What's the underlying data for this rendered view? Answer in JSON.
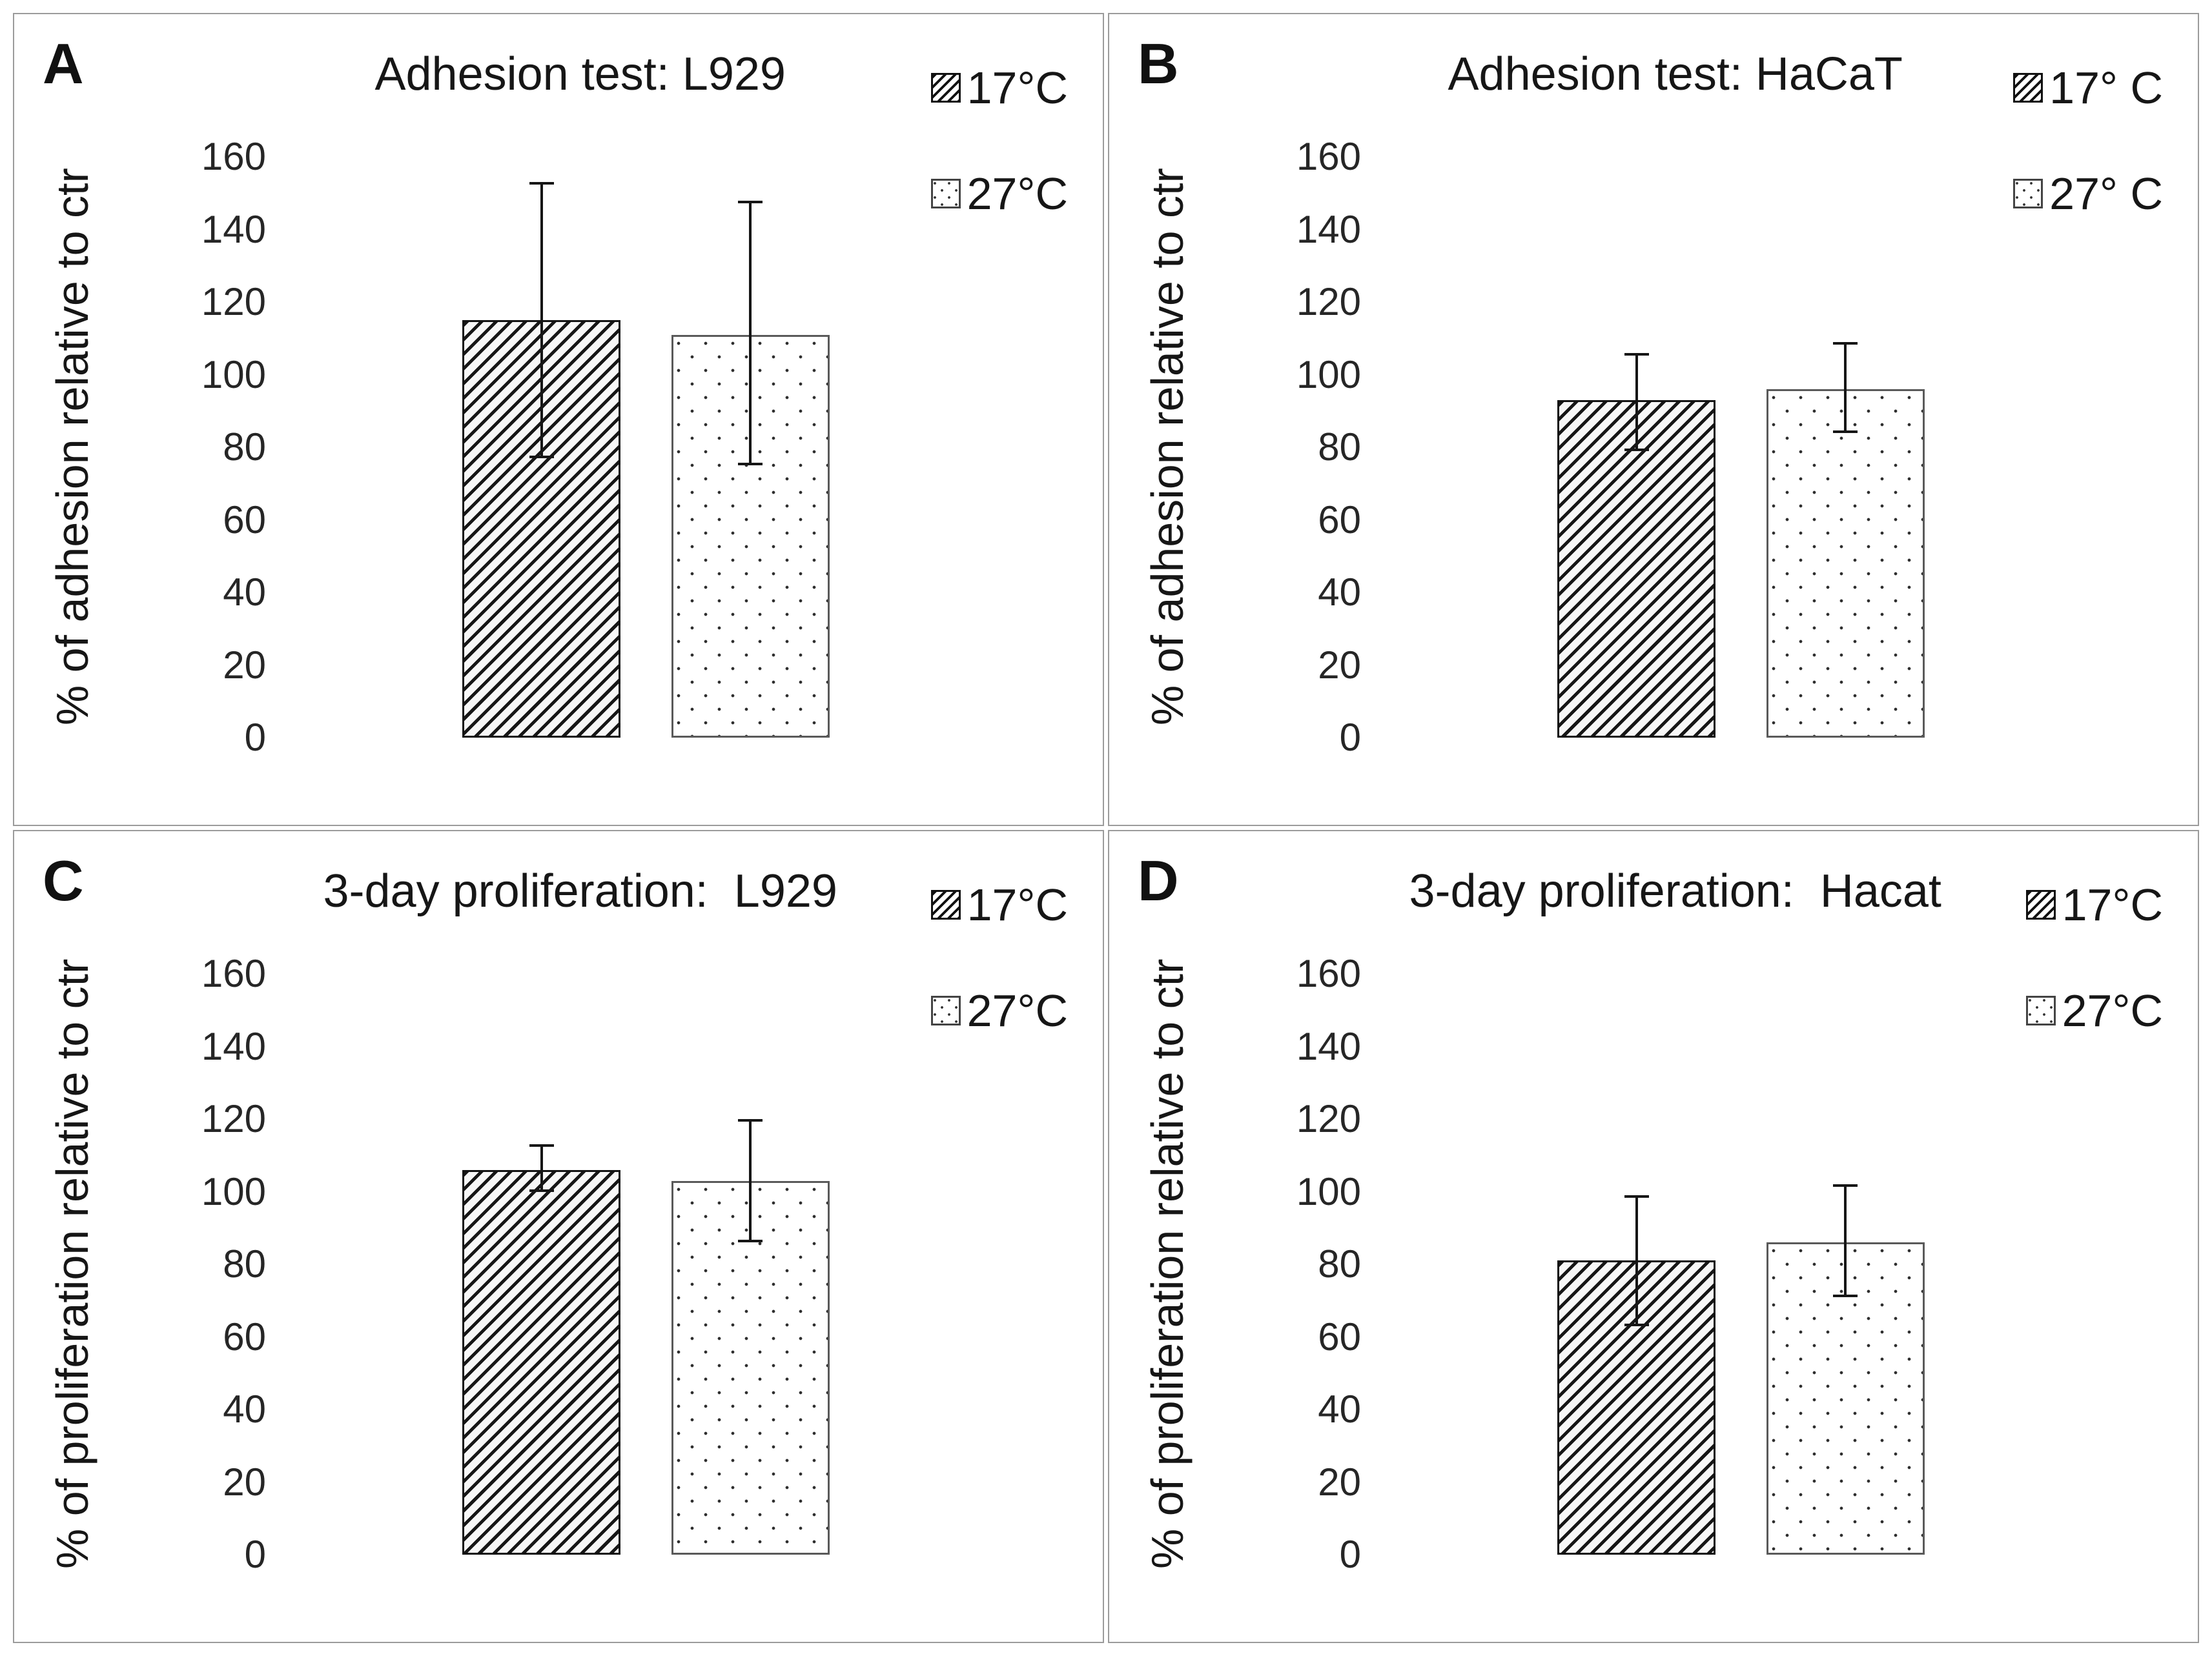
{
  "figure_background": "#ffffff",
  "panel_border_color": "#9b9b9b",
  "bar_colors": {
    "hatch_line": "#161616",
    "dot_color": "#2e2e2e",
    "bar_fill": "#ffffff"
  },
  "chart_data": [
    {
      "type": "bar",
      "panel_label": "A",
      "title": "Adhesion test: L929",
      "ylabel": "% of adhesion relative to ctr",
      "categories": [
        "17°C",
        "27°C"
      ],
      "values": [
        115,
        111
      ],
      "error_low": [
        77,
        75
      ],
      "error_high": [
        153,
        148
      ],
      "ylim": [
        0,
        160
      ],
      "yticks": [
        160,
        140,
        120,
        100,
        80,
        60,
        40,
        20,
        0
      ],
      "legend": [
        "17°C",
        "27°C"
      ],
      "legend_position": "top-right",
      "grid": false,
      "patterns": [
        "diagonal-hatch",
        "dots"
      ]
    },
    {
      "type": "bar",
      "panel_label": "B",
      "title": "Adhesion test: HaCaT",
      "ylabel": "% of adhesion relative to ctr",
      "categories": [
        "17° C",
        "27° C"
      ],
      "values": [
        93,
        96
      ],
      "error_low": [
        79,
        84
      ],
      "error_high": [
        106,
        109
      ],
      "ylim": [
        0,
        160
      ],
      "yticks": [
        160,
        140,
        120,
        100,
        80,
        60,
        40,
        20,
        0
      ],
      "legend": [
        "17° C",
        "27° C"
      ],
      "legend_position": "top-right",
      "grid": false,
      "patterns": [
        "diagonal-hatch",
        "dots"
      ]
    },
    {
      "type": "bar",
      "panel_label": "C",
      "title": "3-day proliferation:  L929",
      "ylabel": "% of proliferation relative to ctr",
      "categories": [
        "17°C",
        "27°C"
      ],
      "values": [
        106,
        103
      ],
      "error_low": [
        100,
        86
      ],
      "error_high": [
        113,
        120
      ],
      "ylim": [
        0,
        160
      ],
      "yticks": [
        160,
        140,
        120,
        100,
        80,
        60,
        40,
        20,
        0
      ],
      "legend": [
        "17°C",
        "27°C"
      ],
      "legend_position": "top-right",
      "grid": false,
      "patterns": [
        "diagonal-hatch",
        "dots"
      ]
    },
    {
      "type": "bar",
      "panel_label": "D",
      "title": "3-day proliferation:  Hacat",
      "ylabel": "% of proliferation relative to ctr",
      "categories": [
        "17°C",
        "27°C"
      ],
      "values": [
        81,
        86
      ],
      "error_low": [
        63,
        71
      ],
      "error_high": [
        99,
        102
      ],
      "ylim": [
        0,
        160
      ],
      "yticks": [
        160,
        140,
        120,
        100,
        80,
        60,
        40,
        20,
        0
      ],
      "legend": [
        "17°C",
        "27°C"
      ],
      "legend_position": "top-right",
      "grid": false,
      "patterns": [
        "diagonal-hatch",
        "dots"
      ]
    }
  ]
}
